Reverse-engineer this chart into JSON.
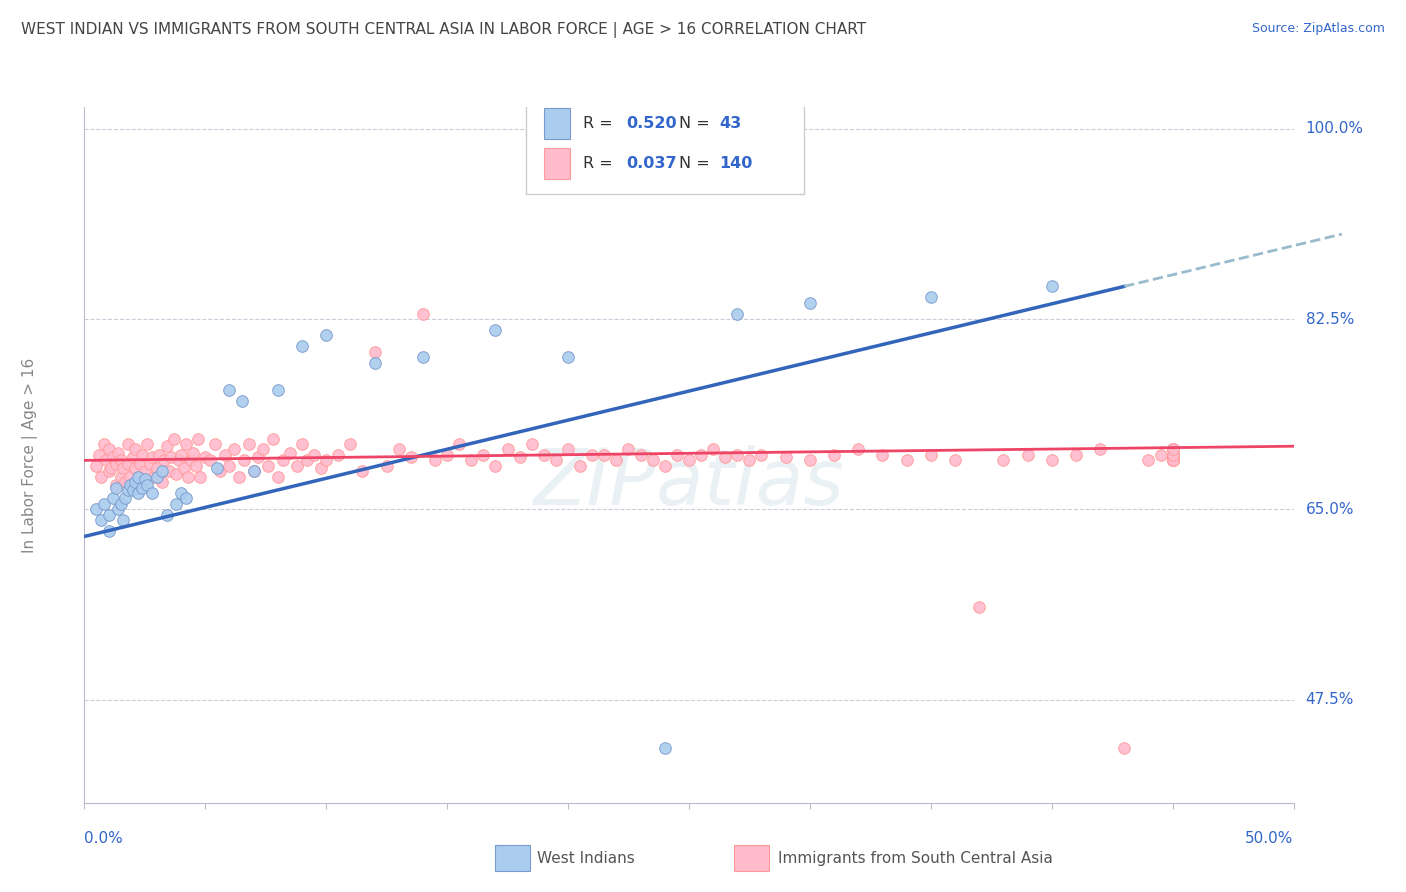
{
  "title": "WEST INDIAN VS IMMIGRANTS FROM SOUTH CENTRAL ASIA IN LABOR FORCE | AGE > 16 CORRELATION CHART",
  "source": "Source: ZipAtlas.com",
  "ylabel_label": "In Labor Force | Age > 16",
  "xlim": [
    0.0,
    0.5
  ],
  "ylim": [
    0.38,
    1.02
  ],
  "west_indians_R": 0.52,
  "west_indians_N": 43,
  "immigrants_R": 0.037,
  "immigrants_N": 140,
  "blue_dot_color": "#AACCEE",
  "blue_edge_color": "#7799CC",
  "pink_dot_color": "#FFBBCC",
  "pink_edge_color": "#FF9999",
  "line_blue": "#3366BB",
  "line_pink": "#EE4466",
  "line_dashed_color": "#99BBCC",
  "bg_color": "#FFFFFF",
  "grid_color": "#CCCCDD",
  "text_color": "#3366CC",
  "title_color": "#444444",
  "ytick_positions": [
    0.475,
    0.65,
    0.825,
    1.0
  ],
  "ytick_labels": [
    "47.5%",
    "65.0%",
    "82.5%",
    "100.0%"
  ],
  "blue_line_x0": 0.0,
  "blue_line_y0": 0.625,
  "blue_line_x1": 0.43,
  "blue_line_y1": 0.855,
  "pink_line_x0": 0.0,
  "pink_line_y0": 0.695,
  "pink_line_x1": 0.5,
  "pink_line_y1": 0.708,
  "wi_x": [
    0.005,
    0.007,
    0.008,
    0.01,
    0.01,
    0.012,
    0.013,
    0.014,
    0.015,
    0.016,
    0.017,
    0.018,
    0.019,
    0.02,
    0.021,
    0.022,
    0.022,
    0.024,
    0.025,
    0.026,
    0.028,
    0.03,
    0.032,
    0.034,
    0.038,
    0.04,
    0.042,
    0.055,
    0.06,
    0.065,
    0.07,
    0.08,
    0.09,
    0.1,
    0.12,
    0.14,
    0.17,
    0.2,
    0.24,
    0.27,
    0.3,
    0.35,
    0.4
  ],
  "wi_y": [
    0.65,
    0.64,
    0.655,
    0.63,
    0.645,
    0.66,
    0.67,
    0.65,
    0.655,
    0.64,
    0.66,
    0.668,
    0.672,
    0.668,
    0.675,
    0.665,
    0.68,
    0.67,
    0.678,
    0.672,
    0.665,
    0.68,
    0.685,
    0.645,
    0.655,
    0.665,
    0.66,
    0.688,
    0.76,
    0.75,
    0.685,
    0.76,
    0.8,
    0.81,
    0.785,
    0.79,
    0.815,
    0.79,
    0.43,
    0.83,
    0.84,
    0.845,
    0.855
  ],
  "im_x": [
    0.005,
    0.006,
    0.007,
    0.008,
    0.009,
    0.01,
    0.01,
    0.011,
    0.012,
    0.013,
    0.013,
    0.014,
    0.015,
    0.015,
    0.016,
    0.017,
    0.018,
    0.018,
    0.019,
    0.02,
    0.021,
    0.021,
    0.022,
    0.023,
    0.024,
    0.025,
    0.026,
    0.027,
    0.028,
    0.029,
    0.03,
    0.031,
    0.032,
    0.033,
    0.034,
    0.035,
    0.036,
    0.037,
    0.038,
    0.039,
    0.04,
    0.041,
    0.042,
    0.043,
    0.044,
    0.045,
    0.046,
    0.047,
    0.048,
    0.05,
    0.052,
    0.054,
    0.056,
    0.058,
    0.06,
    0.062,
    0.064,
    0.066,
    0.068,
    0.07,
    0.072,
    0.074,
    0.076,
    0.078,
    0.08,
    0.082,
    0.085,
    0.088,
    0.09,
    0.092,
    0.095,
    0.098,
    0.1,
    0.105,
    0.11,
    0.115,
    0.12,
    0.125,
    0.13,
    0.135,
    0.14,
    0.145,
    0.15,
    0.155,
    0.16,
    0.165,
    0.17,
    0.175,
    0.18,
    0.185,
    0.19,
    0.195,
    0.2,
    0.205,
    0.21,
    0.215,
    0.22,
    0.225,
    0.23,
    0.235,
    0.24,
    0.245,
    0.25,
    0.255,
    0.26,
    0.265,
    0.27,
    0.275,
    0.28,
    0.29,
    0.3,
    0.31,
    0.32,
    0.33,
    0.34,
    0.35,
    0.36,
    0.37,
    0.38,
    0.39,
    0.4,
    0.41,
    0.42,
    0.43,
    0.44,
    0.445,
    0.45,
    0.45,
    0.45,
    0.45,
    0.45,
    0.45,
    0.45,
    0.45,
    0.45,
    0.45,
    0.45,
    0.45,
    0.45,
    0.45
  ],
  "im_y": [
    0.69,
    0.7,
    0.68,
    0.71,
    0.695,
    0.685,
    0.705,
    0.688,
    0.698,
    0.672,
    0.692,
    0.702,
    0.68,
    0.695,
    0.688,
    0.675,
    0.692,
    0.71,
    0.68,
    0.698,
    0.688,
    0.705,
    0.675,
    0.692,
    0.7,
    0.685,
    0.71,
    0.692,
    0.698,
    0.68,
    0.688,
    0.7,
    0.675,
    0.695,
    0.708,
    0.685,
    0.698,
    0.715,
    0.682,
    0.695,
    0.7,
    0.688,
    0.71,
    0.68,
    0.695,
    0.702,
    0.69,
    0.715,
    0.68,
    0.698,
    0.695,
    0.71,
    0.685,
    0.7,
    0.69,
    0.705,
    0.68,
    0.695,
    0.71,
    0.685,
    0.698,
    0.705,
    0.69,
    0.715,
    0.68,
    0.695,
    0.702,
    0.69,
    0.71,
    0.695,
    0.7,
    0.688,
    0.695,
    0.7,
    0.71,
    0.685,
    0.795,
    0.69,
    0.705,
    0.698,
    0.83,
    0.695,
    0.7,
    0.71,
    0.695,
    0.7,
    0.69,
    0.705,
    0.698,
    0.71,
    0.7,
    0.695,
    0.705,
    0.69,
    0.7,
    0.7,
    0.695,
    0.705,
    0.7,
    0.695,
    0.69,
    0.7,
    0.695,
    0.7,
    0.705,
    0.698,
    0.7,
    0.695,
    0.7,
    0.698,
    0.695,
    0.7,
    0.705,
    0.7,
    0.695,
    0.7,
    0.695,
    0.56,
    0.695,
    0.7,
    0.695,
    0.7,
    0.705,
    0.43,
    0.695,
    0.7,
    0.705,
    0.695,
    0.7,
    0.695,
    0.7,
    0.695,
    0.7,
    0.705,
    0.7,
    0.695,
    0.7,
    0.695,
    0.7,
    0.705
  ]
}
